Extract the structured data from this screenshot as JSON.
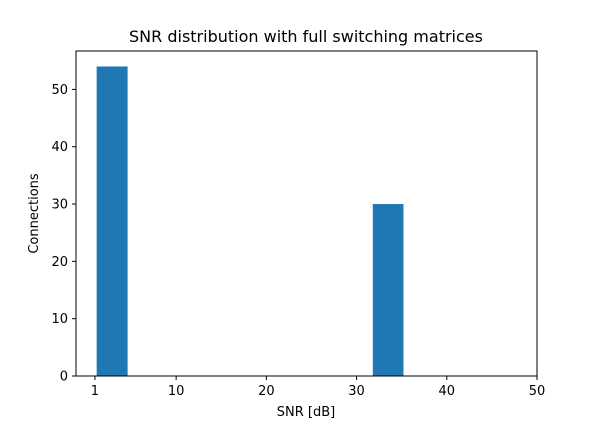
{
  "chart_data": {
    "type": "bar",
    "title": "SNR distribution with full switching matrices",
    "xlabel": "SNR [dB]",
    "ylabel": "Connections",
    "xlim": [
      -1.1,
      50
    ],
    "ylim": [
      0,
      56.7
    ],
    "xticks": [
      1,
      10,
      20,
      30,
      40,
      50
    ],
    "yticks": [
      0,
      10,
      20,
      30,
      40,
      50
    ],
    "grid": false,
    "color": "#1f77b4",
    "bars": [
      {
        "x0": 1.19,
        "x1": 4.62,
        "value": 54
      },
      {
        "x0": 31.8,
        "x1": 35.2,
        "value": 30
      }
    ]
  }
}
